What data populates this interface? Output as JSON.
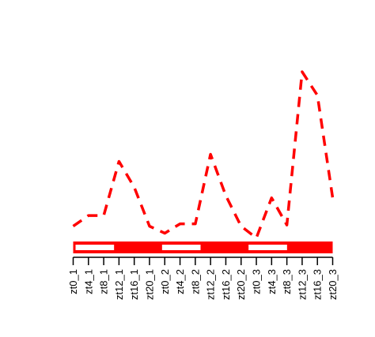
{
  "chart_data": {
    "type": "line",
    "title": "",
    "xlabel": "",
    "ylabel": "",
    "categories": [
      "zt0_1",
      "zt4_1",
      "zt8_1",
      "zt12_1",
      "zt16_1",
      "zt20_1",
      "zt0_2",
      "zt4_2",
      "zt8_2",
      "zt12_2",
      "zt16_2",
      "zt20_2",
      "zt0_3",
      "zt4_3",
      "zt8_3",
      "zt12_3",
      "zt16_3",
      "zt20_3"
    ],
    "series": [
      {
        "values": [
          0.13,
          0.22,
          0.22,
          0.68,
          0.46,
          0.13,
          0.07,
          0.15,
          0.15,
          0.74,
          0.39,
          0.13,
          0.03,
          0.37,
          0.14,
          1.44,
          1.24,
          0.37
        ],
        "color": "#ff0000",
        "style": "dashed"
      }
    ],
    "ylim": [
      0,
      1.5
    ],
    "light_dark_bar": {
      "phases": [
        "light",
        "dark",
        "light",
        "dark",
        "light",
        "dark"
      ],
      "light_color": "#ffffff",
      "dark_color": "#ff0000"
    },
    "axes_visible": false,
    "grid": false
  }
}
